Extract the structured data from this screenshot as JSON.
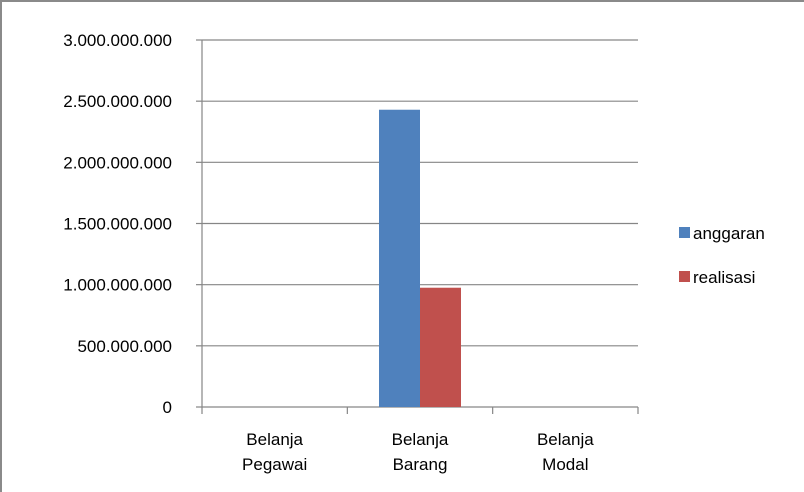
{
  "chart_data": {
    "type": "bar",
    "categories": [
      [
        "Belanja",
        "Pegawai"
      ],
      [
        "Belanja",
        "Barang"
      ],
      [
        "Belanja",
        "Modal"
      ]
    ],
    "series": [
      {
        "name": "anggaran",
        "color": "#4f81bd",
        "values": [
          0,
          2430000000,
          0
        ]
      },
      {
        "name": "realisasi",
        "color": "#c0504d",
        "values": [
          0,
          975000000,
          0
        ]
      }
    ],
    "ylim": [
      0,
      3000000000
    ],
    "yticks": [
      0,
      500000000,
      1000000000,
      1500000000,
      2000000000,
      2500000000,
      3000000000
    ],
    "ytick_labels": [
      "0",
      "500.000.000",
      "1.000.000.000",
      "1.500.000.000",
      "2.000.000.000",
      "2.500.000.000",
      "3.000.000.000"
    ],
    "grid": true,
    "legend_position": "right",
    "title": "",
    "xlabel": "",
    "ylabel": ""
  }
}
